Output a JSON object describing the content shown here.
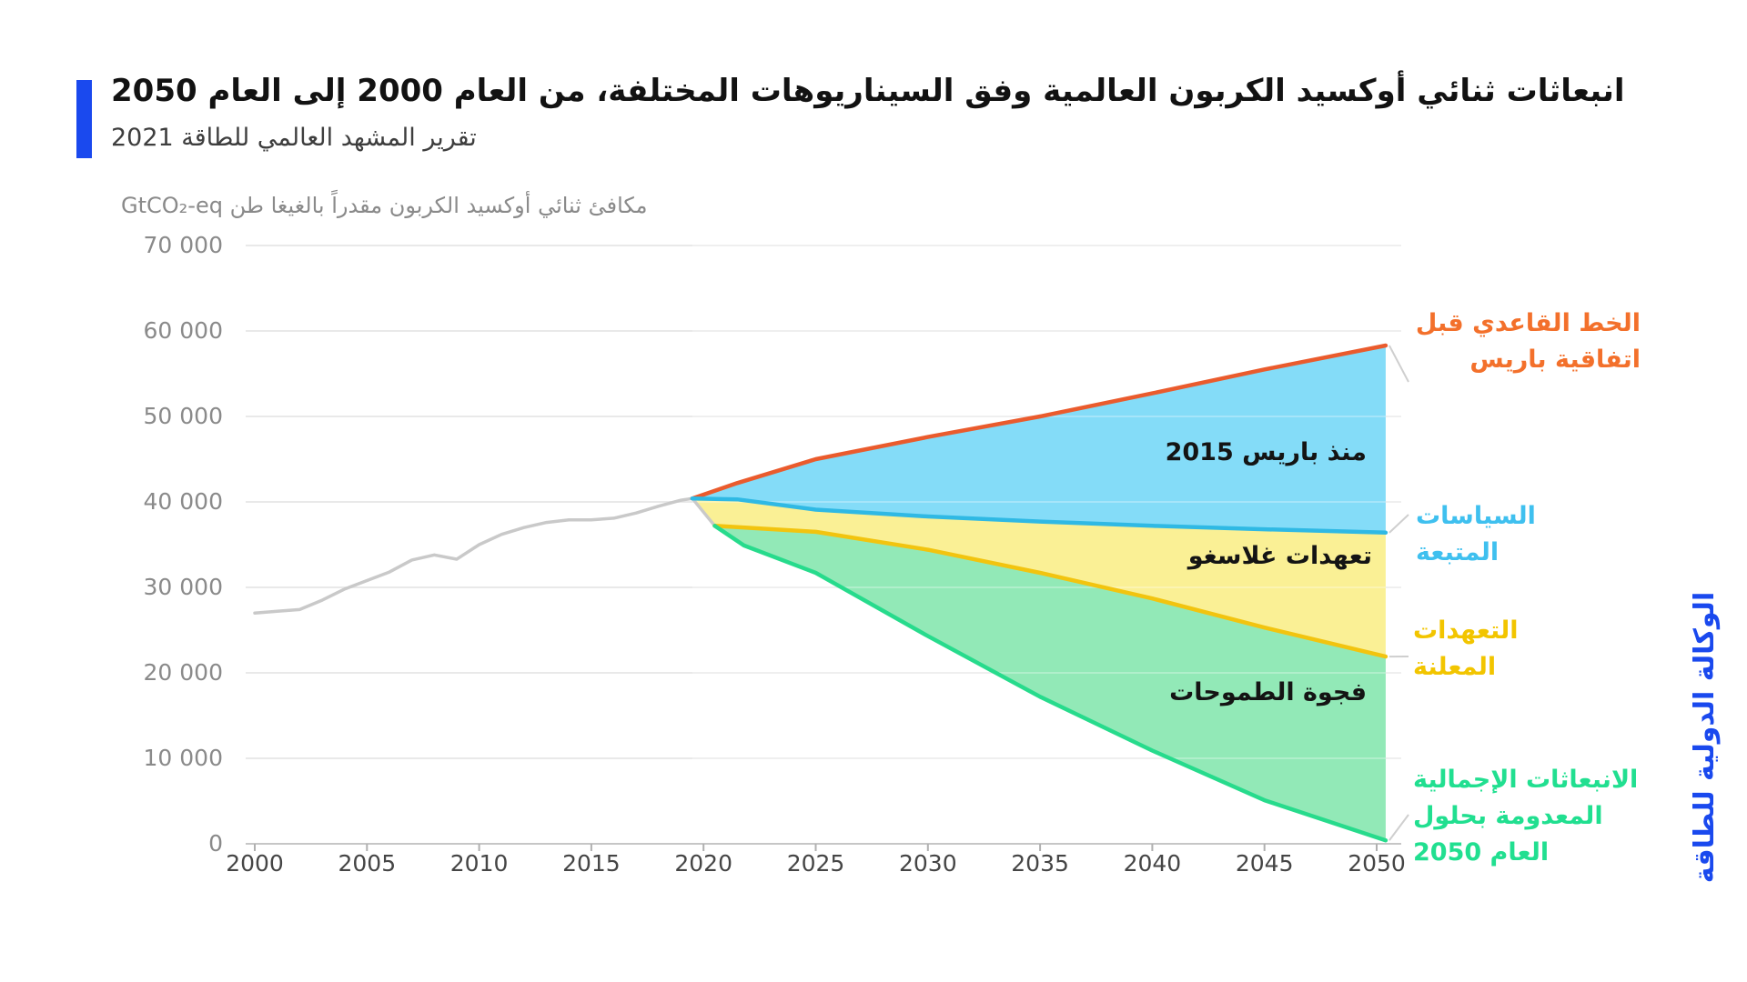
{
  "header": {
    "title": "انبعاثات ثنائي أوكسيد الكربون العالمية وفق السيناريوهات المختلفة، من العام 2000 إلى العام 2050",
    "subtitle": "تقرير المشهد العالمي للطاقة 2021"
  },
  "unit_label": "مكافئ ثنائي أوكسيد الكربون مقدراً بالغيغا طن GtCO₂-eq",
  "source_vertical": "الوكالة الدولية للطاقة",
  "annotations": {
    "since_paris": "منذ باريس 2015",
    "glasgow_pledges": "تعهدات غلاسغو",
    "ambition_gap": "فجوة الطموحات"
  },
  "legends": {
    "baseline": "الخط القاعدي قبل\nاتفاقية باريس",
    "stated_policies": "السياسات\nالمتبعة",
    "announced_pledges": "التعهدات\nالمعلنة",
    "net_zero": "الانبعاثات الإجمالية\nالمعدومة بحلول\nالعام 2050"
  },
  "colors": {
    "accent_blue": "#1A49EE",
    "title_text": "#121212",
    "subtitle_text": "#3e3e3e",
    "axis_text": "#8a8a8a",
    "xaxis_text": "#454545",
    "grid": "#e9e9e9",
    "axis_line": "#c6c6c6",
    "historical_line": "#c9c9c9",
    "baseline_line": "#EA5B2D",
    "baseline_text": "#F3702B",
    "steps_line": "#2FB9E4",
    "steps_text": "#3FC0EF",
    "aps_line": "#F2C40F",
    "aps_text": "#F2C500",
    "nze_line": "#27DB8C",
    "nze_text": "#21DF90",
    "band_blue": "#84DCF8",
    "band_yellow": "#FAF095",
    "band_green": "#92E9B7",
    "connector": "#cfcfcf"
  },
  "chart_data": {
    "type": "area",
    "title": "انبعاثات ثنائي أوكسيد الكربون العالمية وفق السيناريوهات المختلفة، من العام 2000 إلى العام 2050",
    "ylabel": "مكافئ ثنائي أوكسيد الكربون مقدراً بالغيغا طن GtCO₂-eq",
    "xlim": [
      2000,
      2051
    ],
    "ylim": [
      0,
      70000
    ],
    "grid": "horizontal",
    "legend_position": "right",
    "x_ticks": [
      2000,
      2005,
      2010,
      2015,
      2020,
      2025,
      2030,
      2035,
      2040,
      2045,
      2050
    ],
    "y_ticks": [
      {
        "value": 0,
        "label": "0"
      },
      {
        "value": 10000,
        "label": "10 000"
      },
      {
        "value": 20000,
        "label": "20 000"
      },
      {
        "value": 30000,
        "label": "30 000"
      },
      {
        "value": 40000,
        "label": "40 000"
      },
      {
        "value": 50000,
        "label": "50 000"
      },
      {
        "value": 60000,
        "label": "60 000"
      },
      {
        "value": 70000,
        "label": "70 000"
      }
    ],
    "series": [
      {
        "key": "historical",
        "legend_label": "",
        "x": [
          2000,
          2001,
          2002,
          2003,
          2004,
          2005,
          2006,
          2007,
          2008,
          2009,
          2010,
          2011,
          2012,
          2013,
          2014,
          2015,
          2016,
          2017,
          2018,
          2019,
          2019.5,
          2020.5
        ],
        "values": [
          27000,
          27200,
          27400,
          28500,
          29800,
          30800,
          31800,
          33200,
          33800,
          33300,
          35000,
          36200,
          37000,
          37600,
          37900,
          37900,
          38100,
          38700,
          39500,
          40200,
          40400,
          37200
        ]
      },
      {
        "key": "baseline_pre_paris",
        "legend_label": "الخط القاعدي قبل اتفاقية باريس",
        "x": [
          2019.5,
          2021.5,
          2025,
          2030,
          2035,
          2040,
          2045,
          2050.4
        ],
        "values": [
          40400,
          42200,
          45000,
          47600,
          50000,
          52700,
          55500,
          58300
        ]
      },
      {
        "key": "stated_policies",
        "legend_label": "السياسات المتبعة",
        "x": [
          2019.5,
          2021.5,
          2025,
          2030,
          2035,
          2040,
          2045,
          2050.4
        ],
        "values": [
          40400,
          40300,
          39100,
          38300,
          37700,
          37200,
          36800,
          36400
        ]
      },
      {
        "key": "announced_pledges",
        "legend_label": "التعهدات المعلنة",
        "x": [
          2020.5,
          2025,
          2030,
          2035,
          2040,
          2045,
          2050.4
        ],
        "values": [
          37200,
          36500,
          34400,
          31700,
          28700,
          25300,
          21900
        ]
      },
      {
        "key": "net_zero_2050",
        "legend_label": "الانبعاثات الإجمالية المعدومة بحلول العام 2050",
        "x": [
          2020.5,
          2021.8,
          2025,
          2030,
          2035,
          2040,
          2045,
          2050.4
        ],
        "values": [
          37200,
          34900,
          31700,
          24300,
          17200,
          10900,
          5100,
          400
        ]
      }
    ],
    "bands": [
      {
        "between": [
          "baseline_pre_paris",
          "stated_policies"
        ],
        "label": "منذ باريس 2015"
      },
      {
        "between": [
          "stated_policies",
          "announced_pledges"
        ],
        "label": "تعهدات غلاسغو"
      },
      {
        "between": [
          "announced_pledges",
          "net_zero_2050"
        ],
        "label": "فجوة الطموحات"
      }
    ]
  }
}
